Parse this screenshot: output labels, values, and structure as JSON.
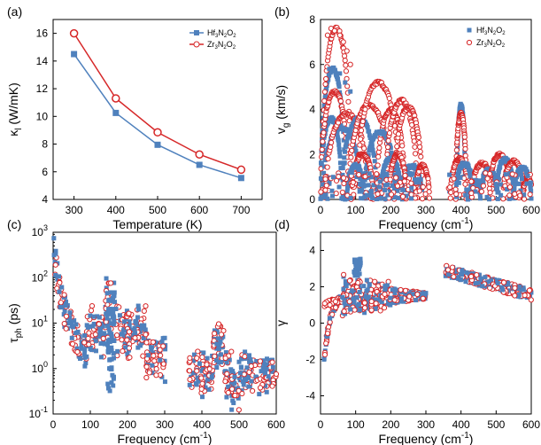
{
  "colors": {
    "hf": "#4f81bd",
    "zr": "#d62728"
  },
  "legend": [
    {
      "name": "Hf",
      "sub1": "3",
      "mid": "N",
      "sub2": "2",
      "end": "O",
      "sub3": "2"
    },
    {
      "name": "Zr",
      "sub1": "3",
      "mid": "N",
      "sub2": "2",
      "end": "O",
      "sub3": "2"
    }
  ],
  "chart_data": [
    {
      "panel": "(a)",
      "type": "line",
      "xlabel": "Temperature (K)",
      "ylabel_main": "κ",
      "ylabel_sub": "l",
      "ylabel_rest": " (W/mK)",
      "xlim": [
        250,
        750
      ],
      "ylim": [
        4,
        17
      ],
      "xticks": [
        300,
        400,
        500,
        600,
        700
      ],
      "yticks": [
        4,
        6,
        8,
        10,
        12,
        14,
        16
      ],
      "x": [
        300,
        400,
        500,
        600,
        700
      ],
      "series": [
        {
          "key": "hf",
          "values": [
            14.5,
            10.25,
            7.95,
            6.5,
            5.55
          ]
        },
        {
          "key": "zr",
          "values": [
            16.0,
            11.3,
            8.85,
            7.25,
            6.15
          ]
        }
      ],
      "legend_position": "top-right"
    },
    {
      "panel": "(b)",
      "type": "scatter",
      "xlabel_main": "Frequency (cm",
      "xlabel_sup": "-1",
      "xlabel_end": ")",
      "ylabel_main": "v",
      "ylabel_sub": "g",
      "ylabel_rest": " (km/s)",
      "xlim": [
        0,
        600
      ],
      "ylim": [
        0,
        8
      ],
      "xticks": [
        0,
        100,
        200,
        300,
        400,
        500,
        600
      ],
      "yticks": [
        0,
        2,
        4,
        6,
        8
      ],
      "legend_position": "top-right"
    },
    {
      "panel": "(c)",
      "type": "scatter",
      "xlabel_main": "Frequency (cm",
      "xlabel_sup": "-1",
      "xlabel_end": ")",
      "ylabel_main": "τ",
      "ylabel_sub": "ph",
      "ylabel_rest": " (ps)",
      "xlim": [
        0,
        600
      ],
      "ylim": [
        0.1,
        1000
      ],
      "yscale": "log",
      "xticks": [
        0,
        100,
        200,
        300,
        400,
        500,
        600
      ],
      "yticks": [
        {
          "base": "10",
          "exp": "-1"
        },
        {
          "base": "10",
          "exp": "0"
        },
        {
          "base": "10",
          "exp": "1"
        },
        {
          "base": "10",
          "exp": "2"
        },
        {
          "base": "10",
          "exp": "3"
        }
      ]
    },
    {
      "panel": "(d)",
      "type": "scatter",
      "xlabel_main": "Frequency (cm",
      "xlabel_sup": "-1",
      "xlabel_end": ")",
      "ylabel_main": "γ",
      "xlim": [
        0,
        600
      ],
      "ylim": [
        -5,
        5
      ],
      "xticks": [
        0,
        100,
        200,
        300,
        400,
        500,
        600
      ],
      "yticks": [
        -4,
        -2,
        0,
        2,
        4
      ]
    }
  ]
}
